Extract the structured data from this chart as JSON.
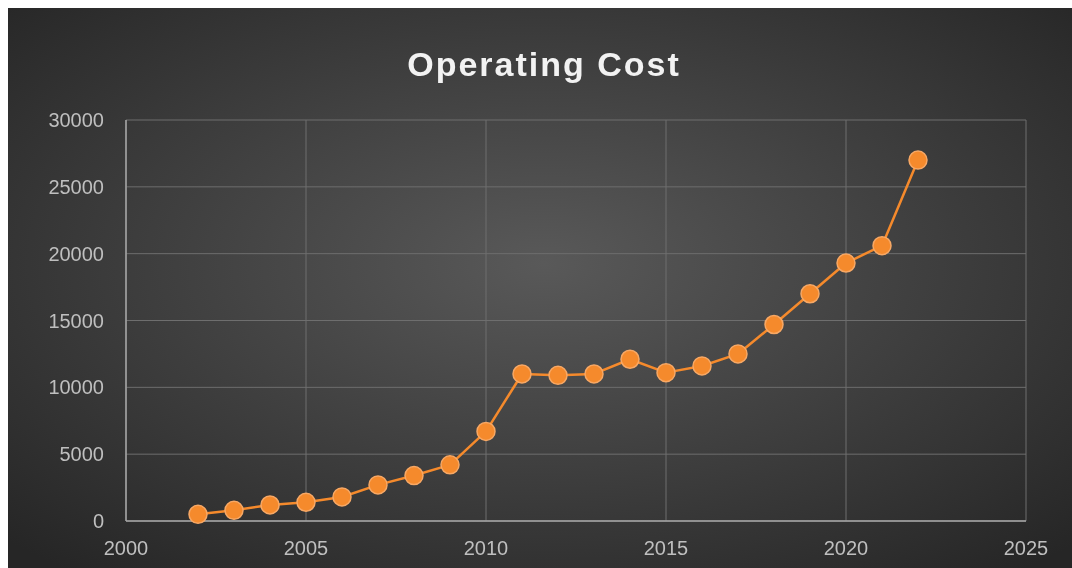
{
  "chart_data": {
    "type": "line",
    "title": "Operating Cost",
    "x": [
      2002,
      2003,
      2004,
      2005,
      2006,
      2007,
      2008,
      2009,
      2010,
      2011,
      2012,
      2013,
      2014,
      2015,
      2016,
      2017,
      2018,
      2019,
      2020,
      2021,
      2022
    ],
    "series": [
      {
        "color": "#f58a2c",
        "values": [
          500,
          800,
          1200,
          1400,
          1800,
          2700,
          3400,
          4200,
          6700,
          11000,
          10900,
          11000,
          12100,
          11100,
          11600,
          12500,
          14700,
          17000,
          19300,
          20600,
          27000
        ]
      }
    ],
    "xlim": [
      2000,
      2025
    ],
    "xticks": [
      2000,
      2005,
      2010,
      2015,
      2020,
      2025
    ],
    "ylim": [
      0,
      30000
    ],
    "yticks": [
      0,
      5000,
      10000,
      15000,
      20000,
      25000,
      30000
    ],
    "grid": true,
    "marker": "circle",
    "line_style": "solid"
  }
}
